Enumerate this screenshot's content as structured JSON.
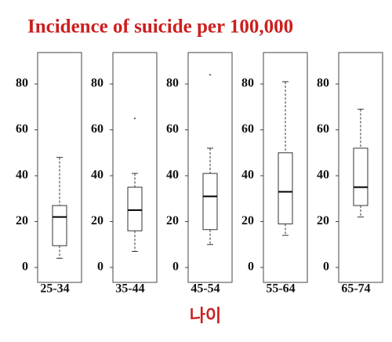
{
  "chart_data": {
    "type": "box",
    "title": "Incidence of suicide per 100,000",
    "x_label": "나이",
    "categories": [
      "25-34",
      "35-44",
      "45-54",
      "55-64",
      "65-74"
    ],
    "boxes": [
      {
        "min": 4,
        "q1": 9.5,
        "median": 22,
        "q3": 27,
        "max": 48,
        "outliers": []
      },
      {
        "min": 7,
        "q1": 16,
        "median": 25,
        "q3": 35,
        "max": 41,
        "outliers": [
          65
        ]
      },
      {
        "min": 10,
        "q1": 16.5,
        "median": 31,
        "q3": 41,
        "max": 52,
        "outliers": [
          84
        ]
      },
      {
        "min": 14,
        "q1": 19,
        "median": 33,
        "q3": 50,
        "max": 81,
        "outliers": []
      },
      {
        "min": 22,
        "q1": 27,
        "median": 35,
        "q3": 52,
        "max": 69,
        "outliers": []
      }
    ],
    "ylim": [
      -6.5,
      93.7
    ],
    "yticks": [
      0,
      20,
      40,
      60,
      80
    ],
    "title_color": "#cc1f1f"
  }
}
